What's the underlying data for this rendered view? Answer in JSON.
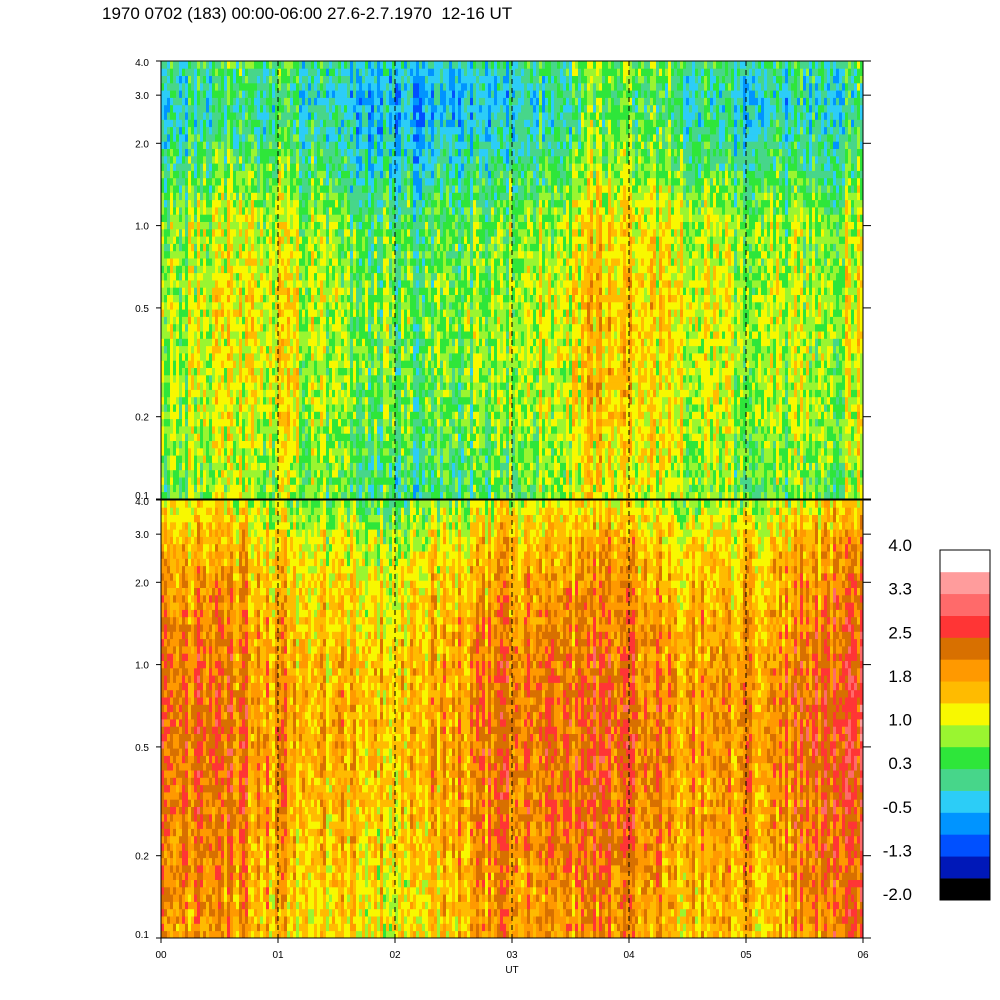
{
  "title": "1970 0702 (183) 00:00-06:00 27.6-2.7.1970  12-16 UT",
  "chart_data": {
    "type": "heatmap",
    "title": "1970 0702 (183) 00:00-06:00 27.6-2.7.1970  12-16 UT",
    "xlabel": "UT",
    "ylabel": "",
    "x_ticks": [
      "00",
      "01",
      "02",
      "03",
      "04",
      "05",
      "06"
    ],
    "xlim": [
      0,
      6
    ],
    "y_scale": "log",
    "ylim": [
      0.1,
      4.0
    ],
    "y_ticks": [
      {
        "value": 4.0,
        "label": "4.0"
      },
      {
        "value": 3.0,
        "label": "3.0"
      },
      {
        "value": 2.0,
        "label": "2.0"
      },
      {
        "value": 1.0,
        "label": "1.0"
      },
      {
        "value": 0.5,
        "label": "0.5"
      },
      {
        "value": 0.2,
        "label": "0.2"
      },
      {
        "value": 0.1,
        "label": "0.1"
      }
    ],
    "dashed_verticals_at": [
      1,
      2,
      3,
      4,
      5
    ],
    "panels": [
      {
        "name": "upper",
        "profile": [
          {
            "y": 0.1,
            "value": 0.5
          },
          {
            "y": 0.2,
            "value": 0.8
          },
          {
            "y": 0.5,
            "value": 0.9
          },
          {
            "y": 1.0,
            "value": 0.7
          },
          {
            "y": 2.0,
            "value": 0.0
          },
          {
            "y": 3.0,
            "value": -0.2
          },
          {
            "y": 4.0,
            "value": 0.1
          }
        ]
      },
      {
        "name": "lower",
        "profile": [
          {
            "y": 0.1,
            "value": 1.6
          },
          {
            "y": 0.2,
            "value": 1.8
          },
          {
            "y": 0.5,
            "value": 2.0
          },
          {
            "y": 1.0,
            "value": 1.9
          },
          {
            "y": 2.0,
            "value": 1.6
          },
          {
            "y": 3.0,
            "value": 1.3
          },
          {
            "y": 4.0,
            "value": 0.8
          }
        ]
      }
    ],
    "colorbar": {
      "labels": [
        "4.0",
        "3.3",
        "2.5",
        "1.8",
        "1.0",
        "0.3",
        "-0.5",
        "-1.3",
        "-2.0"
      ],
      "levels_bottom_to_top": [
        {
          "min": -2.3,
          "color": "#000000"
        },
        {
          "min": -1.7,
          "color": "#0018b8"
        },
        {
          "min": -1.3,
          "color": "#0050ff"
        },
        {
          "min": -0.9,
          "color": "#0094ff"
        },
        {
          "min": -0.5,
          "color": "#2ccdf7"
        },
        {
          "min": -0.1,
          "color": "#47d68a"
        },
        {
          "min": 0.3,
          "color": "#2ee63a"
        },
        {
          "min": 0.65,
          "color": "#9af530"
        },
        {
          "min": 1.0,
          "color": "#f8f800"
        },
        {
          "min": 1.4,
          "color": "#ffbb00"
        },
        {
          "min": 1.8,
          "color": "#ff9900"
        },
        {
          "min": 2.15,
          "color": "#d87000"
        },
        {
          "min": 2.5,
          "color": "#ff3535"
        },
        {
          "min": 2.9,
          "color": "#ff6a6a"
        },
        {
          "min": 3.3,
          "color": "#ff9c9c"
        },
        {
          "min": 3.7,
          "color": "#ffffff"
        }
      ]
    }
  }
}
